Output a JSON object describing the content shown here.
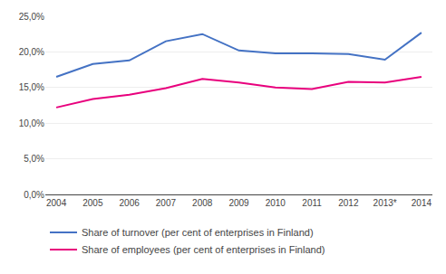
{
  "chart_data": {
    "type": "line",
    "categories": [
      "2004",
      "2005",
      "2006",
      "2007",
      "2008",
      "2009",
      "2010",
      "2011",
      "2012",
      "2013*",
      "2014"
    ],
    "series": [
      {
        "name": "Share of turnover (per cent of enterprises in Finland)",
        "color": "#4472C4",
        "values": [
          16.5,
          18.3,
          18.8,
          21.5,
          22.5,
          20.2,
          19.8,
          19.8,
          19.7,
          18.9,
          22.7
        ]
      },
      {
        "name": "Share of employees (per cent of enterprises in Finland)",
        "color": "#E8007D",
        "values": [
          12.2,
          13.4,
          14.0,
          14.9,
          16.2,
          15.7,
          15.0,
          14.8,
          15.8,
          15.7,
          16.5
        ]
      }
    ],
    "ylim": [
      0,
      25
    ],
    "yticks": [
      {
        "value": 0,
        "label": "0,0%"
      },
      {
        "value": 5,
        "label": "5,0%"
      },
      {
        "value": 10,
        "label": "10,0%"
      },
      {
        "value": 15,
        "label": "15,0%"
      },
      {
        "value": 20,
        "label": "20,0%"
      },
      {
        "value": 25,
        "label": "25,0%"
      }
    ],
    "grid": true,
    "legend": "bottom left"
  }
}
